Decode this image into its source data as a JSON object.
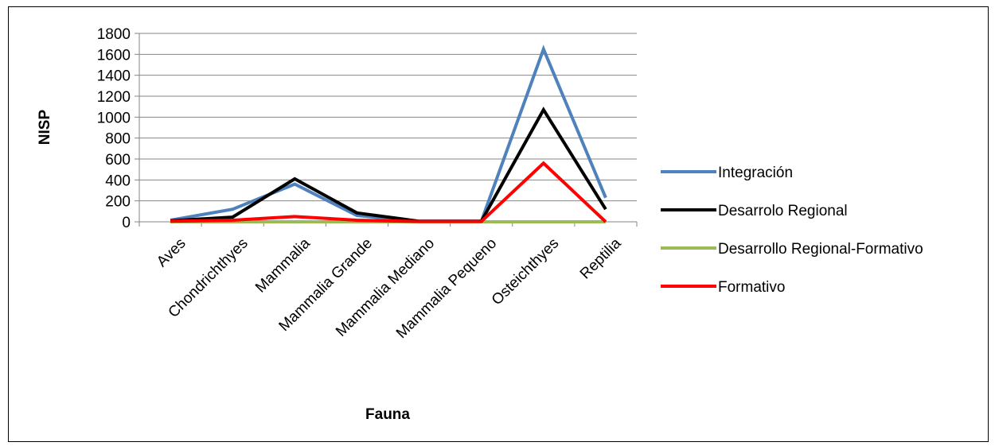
{
  "chart_data": {
    "type": "line",
    "title": "",
    "xlabel": "Fauna",
    "ylabel": "NISP",
    "ylim": [
      0,
      1800
    ],
    "yticks": [
      0,
      200,
      400,
      600,
      800,
      1000,
      1200,
      1400,
      1600,
      1800
    ],
    "grid": true,
    "legend_position": "right",
    "categories": [
      "Aves",
      "Chondrichthyes",
      "Mammalia",
      "Mammalia Grande",
      "Mammalia Mediano",
      "Mammalia Pequeno",
      "Osteichthyes",
      "Reptilia"
    ],
    "series": [
      {
        "name": "Integración",
        "color": "#4f81bd",
        "values": [
          15,
          120,
          360,
          60,
          5,
          5,
          1650,
          230
        ]
      },
      {
        "name": "Desarrolo Regional",
        "color": "#000000",
        "values": [
          10,
          45,
          410,
          85,
          5,
          5,
          1070,
          120
        ]
      },
      {
        "name": "Desarrollo Regional-Formativo",
        "color": "#9bbb59",
        "values": [
          0,
          0,
          0,
          0,
          0,
          0,
          0,
          0
        ]
      },
      {
        "name": "Formativo",
        "color": "#ff0000",
        "values": [
          5,
          15,
          50,
          15,
          3,
          3,
          560,
          0
        ]
      }
    ]
  }
}
